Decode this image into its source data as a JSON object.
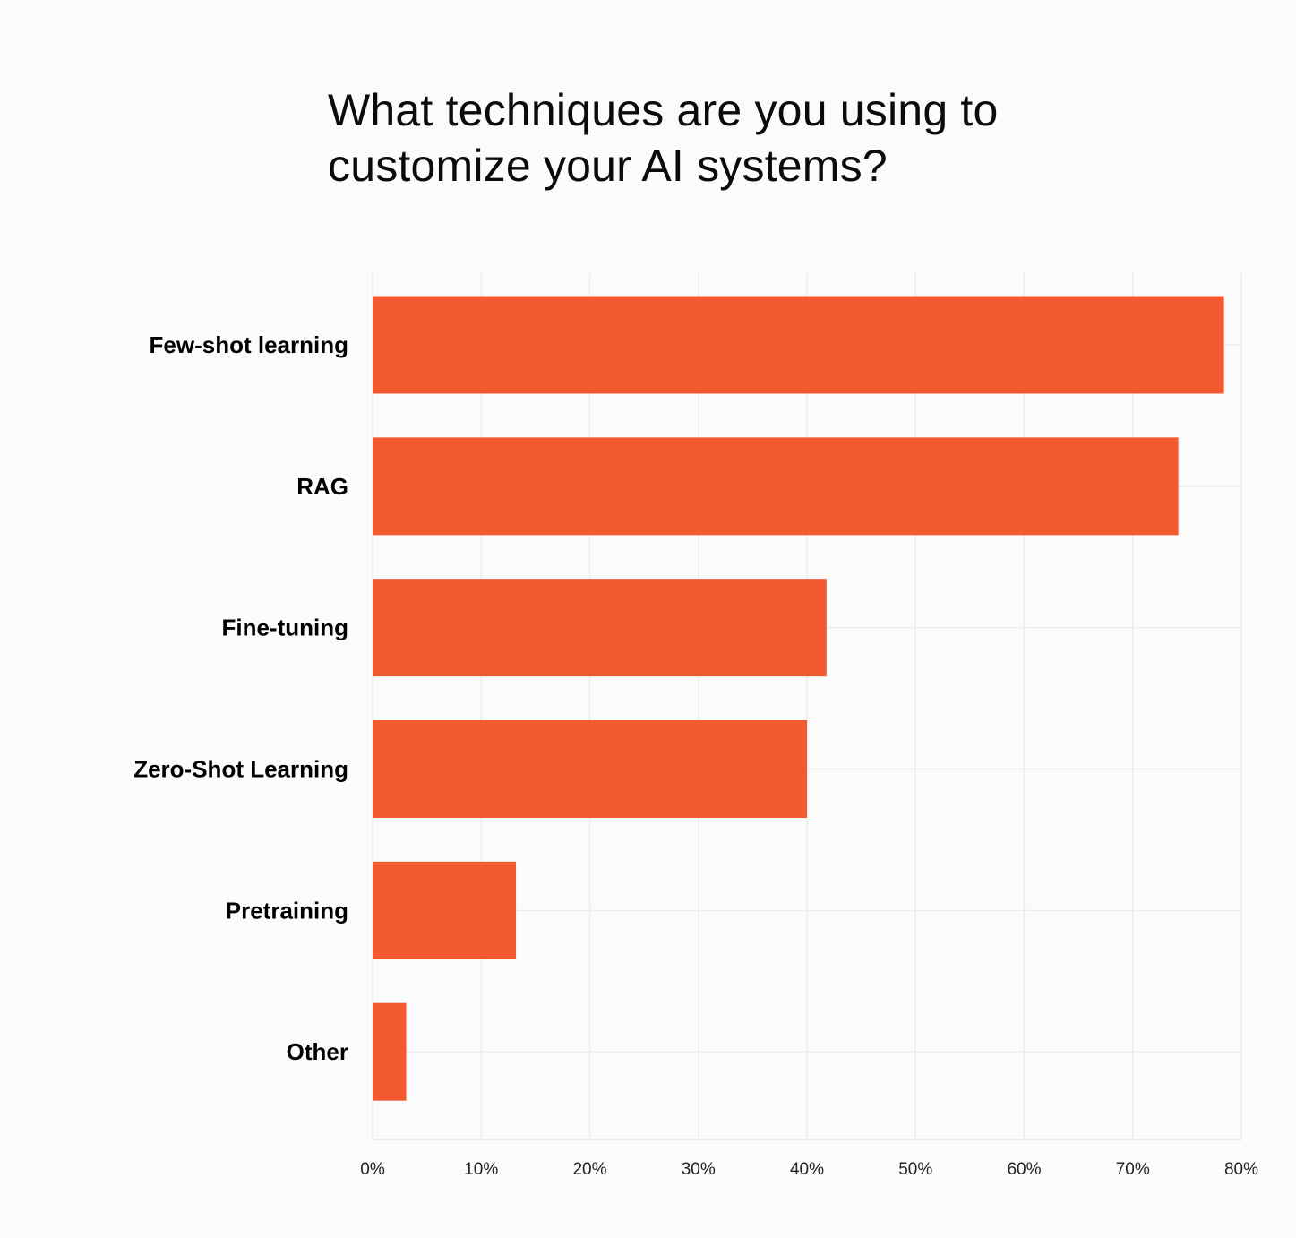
{
  "chart_data": {
    "type": "bar",
    "orientation": "horizontal",
    "title": "What techniques are you using to customize your AI systems?",
    "xlabel": "",
    "ylabel": "",
    "categories": [
      "Few-shot learning",
      "RAG",
      "Fine-tuning",
      "Zero-Shot Learning",
      "Pretraining",
      "Other"
    ],
    "values": [
      78.4,
      74.2,
      41.8,
      40.0,
      13.2,
      3.1
    ],
    "value_unit": "%",
    "xlim": [
      0,
      80
    ],
    "x_ticks": [
      0,
      10,
      20,
      30,
      40,
      50,
      60,
      70,
      80
    ],
    "x_tick_labels": [
      "0%",
      "10%",
      "20%",
      "30%",
      "40%",
      "50%",
      "60%",
      "70%",
      "80%"
    ],
    "grid": true,
    "legend": "none",
    "bar_color": "#f45a2f"
  }
}
